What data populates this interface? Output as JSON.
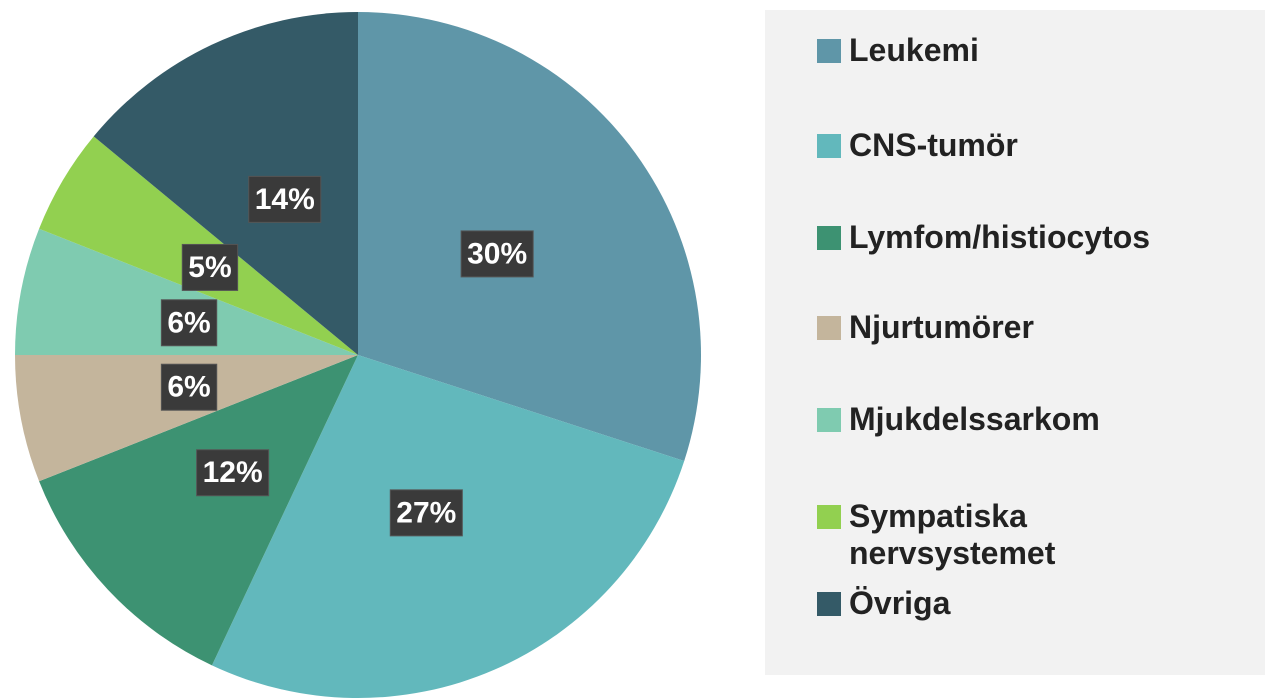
{
  "chart_data": {
    "type": "pie",
    "categories": [
      "Leukemi",
      "CNS-tumör",
      "Lymfom/histiocytos",
      "Njurtumörer",
      "Mjukdelssarkom",
      "Sympatiska nervsystemet",
      "Övriga"
    ],
    "values": [
      30,
      27,
      12,
      6,
      6,
      5,
      14
    ],
    "value_labels": [
      "30%",
      "27%",
      "12%",
      "6%",
      "6%",
      "5%",
      "14%"
    ],
    "colors": [
      "#5f96a8",
      "#62b8bc",
      "#3d9272",
      "#c4b59c",
      "#7fcbb0",
      "#92d050",
      "#345a67"
    ],
    "legend": "right"
  }
}
